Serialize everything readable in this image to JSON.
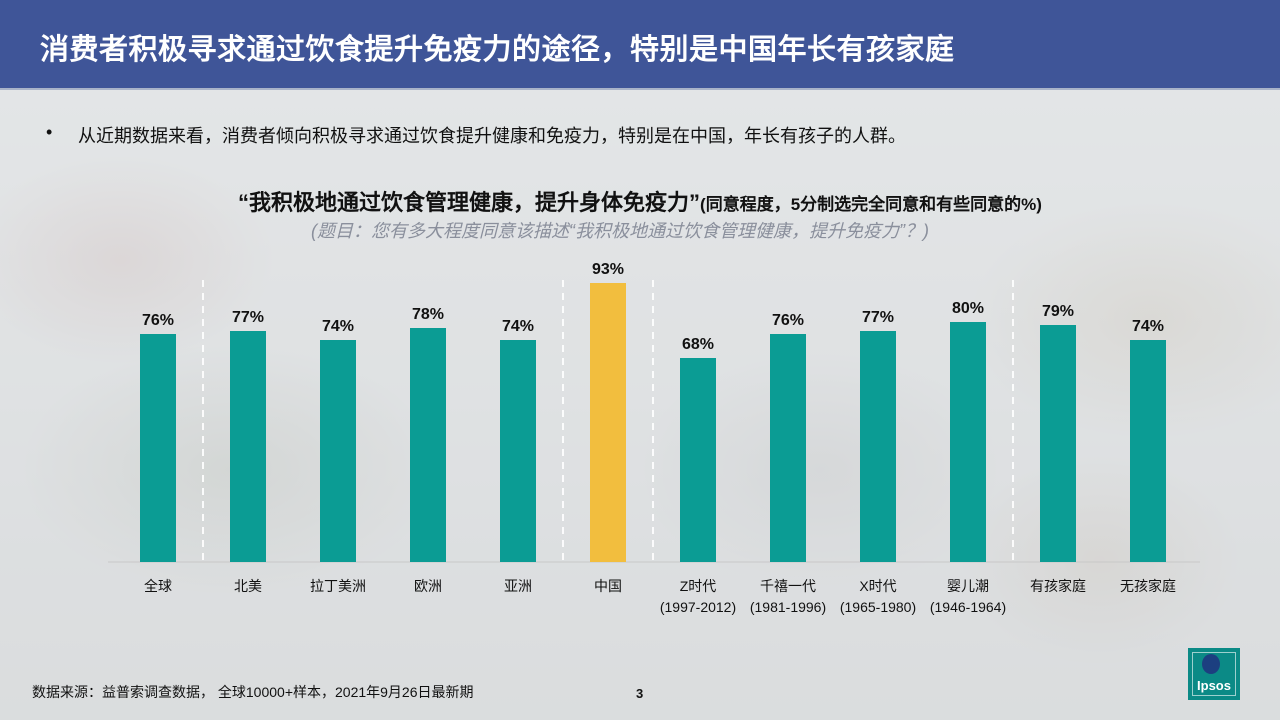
{
  "header": {
    "title": "消费者积极寻求通过饮食提升免疫力的途径，特别是中国年长有孩家庭"
  },
  "bullet": {
    "dot": "•",
    "text": "从近期数据来看，消费者倾向积极寻求通过饮食提升健康和免疫力，特别是在中国，年长有孩子的人群。"
  },
  "chart_data": {
    "type": "bar",
    "title": "“我积极地通过饮食管理健康，提升身体免疫力”",
    "subtitle": "(同意程度，5分制选完全同意和有些同意的%)",
    "question": "(题目：您有多大程度同意该描述“我积极地通过饮食管理健康，提升免疫力”？)",
    "categories": [
      "全球",
      "北美",
      "拉丁美洲",
      "欧洲",
      "亚洲",
      "中国",
      "Z时代",
      "千禧一代",
      "X时代",
      "婴儿潮",
      "有孩家庭",
      "无孩家庭"
    ],
    "sublabels": [
      "",
      "",
      "",
      "",
      "",
      "",
      "(1997-2012)",
      "(1981-1996)",
      "(1965-1980)",
      "(1946-1964)",
      "",
      ""
    ],
    "values": [
      76,
      77,
      74,
      78,
      74,
      93,
      68,
      76,
      77,
      80,
      79,
      74
    ],
    "value_labels": [
      "76%",
      "77%",
      "74%",
      "78%",
      "74%",
      "93%",
      "68%",
      "76%",
      "77%",
      "80%",
      "79%",
      "74%"
    ],
    "highlight_index": 5,
    "colors": {
      "default": "#0b9c94",
      "highlight": "#f2be3e"
    },
    "ylim": [
      0,
      100
    ],
    "group_separators_after": [
      0,
      4,
      5,
      9
    ]
  },
  "footer": {
    "source": "数据来源：益普索调查数据， 全球10000+样本，2021年9月26日最新期",
    "page": "3"
  },
  "logo": {
    "text": "Ipsos"
  }
}
